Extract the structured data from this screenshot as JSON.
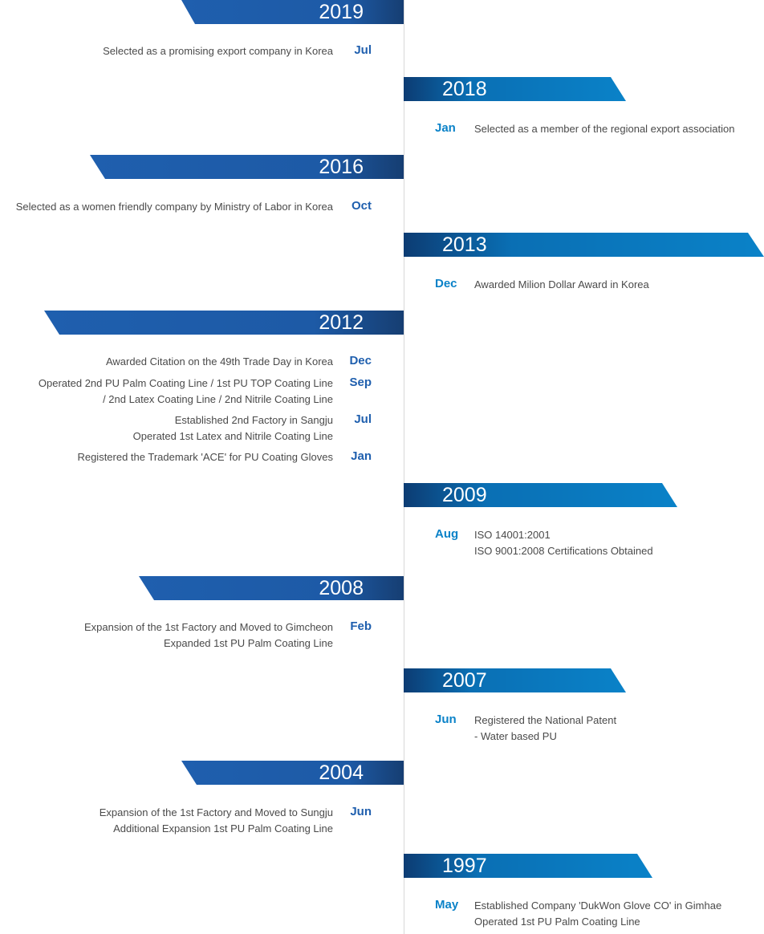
{
  "timeline": [
    {
      "year": "2019",
      "entries": [
        {
          "month": "Jul",
          "lines": [
            "Selected as a promising export company in Korea"
          ]
        }
      ]
    },
    {
      "year": "2018",
      "entries": [
        {
          "month": "Jan",
          "lines": [
            "Selected as a member of the regional export association"
          ]
        }
      ]
    },
    {
      "year": "2016",
      "entries": [
        {
          "month": "Oct",
          "lines": [
            "Selected as a women friendly company by Ministry of Labor in Korea"
          ]
        }
      ]
    },
    {
      "year": "2013",
      "entries": [
        {
          "month": "Dec",
          "lines": [
            "Awarded Milion Dollar Award in Korea"
          ]
        }
      ]
    },
    {
      "year": "2012",
      "entries": [
        {
          "month": "Dec",
          "lines": [
            "Awarded Citation on the 49th Trade Day in Korea"
          ]
        },
        {
          "month": "Sep",
          "lines": [
            "Operated 2nd PU Palm Coating Line / 1st PU TOP Coating Line",
            "/ 2nd Latex Coating Line / 2nd Nitrile Coating Line"
          ]
        },
        {
          "month": "Jul",
          "lines": [
            "Established 2nd Factory in Sangju",
            "Operated 1st Latex and Nitrile Coating Line"
          ]
        },
        {
          "month": "Jan",
          "lines": [
            "Registered the Trademark 'ACE' for PU Coating Gloves"
          ]
        }
      ]
    },
    {
      "year": "2009",
      "entries": [
        {
          "month": "Aug",
          "lines": [
            "ISO 14001:2001",
            "ISO 9001:2008 Certifications Obtained"
          ]
        }
      ]
    },
    {
      "year": "2008",
      "entries": [
        {
          "month": "Feb",
          "lines": [
            "Expansion of the 1st Factory and Moved to Gimcheon",
            "Expanded 1st PU Palm Coating Line"
          ]
        }
      ]
    },
    {
      "year": "2007",
      "entries": [
        {
          "month": "Jun",
          "lines": [
            "Registered the National Patent",
            "- Water based PU"
          ]
        }
      ]
    },
    {
      "year": "2004",
      "entries": [
        {
          "month": "Jun",
          "lines": [
            "Expansion of the 1st Factory and Moved to Sungju",
            "Additional Expansion 1st PU Palm Coating Line"
          ]
        }
      ]
    },
    {
      "year": "1997",
      "entries": [
        {
          "month": "May",
          "lines": [
            "Established Company 'DukWon Glove CO' in Gimhae",
            "Operated 1st PU Palm Coating Line"
          ]
        }
      ]
    }
  ],
  "colors": {
    "left_banner": "#1d5aa6",
    "right_banner": "#0a82c8",
    "left_month": "#1f5fae",
    "right_month": "#0a82c8",
    "text": "#4a4a4a"
  }
}
